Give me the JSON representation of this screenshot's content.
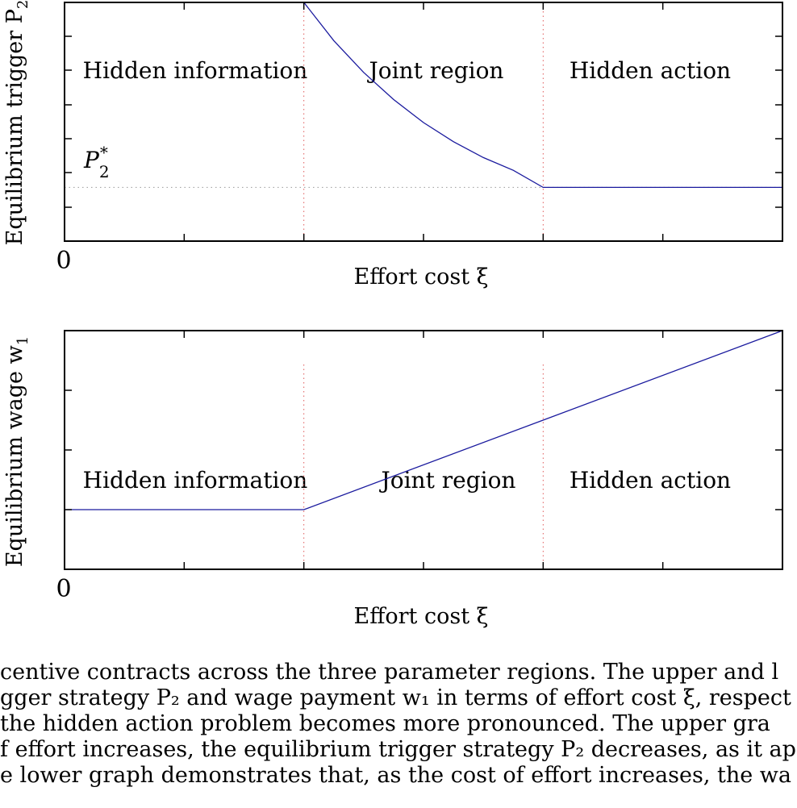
{
  "chart_data": [
    {
      "type": "line",
      "ylabel": "Equilibrium trigger P",
      "ylabel_sub": "2",
      "xlabel": "Effort cost ξ",
      "origin_label": "0",
      "regions": [
        "Hidden information",
        "Joint region",
        "Hidden action"
      ],
      "annotation": "P",
      "annotation_sub": "2",
      "annotation_sup": "*",
      "xlim": [
        0,
        6
      ],
      "ylim": [
        0,
        6
      ],
      "region_boundaries": [
        2,
        4
      ],
      "reference_y": 1.35,
      "series": [
        {
          "x": [
            0,
            2,
            2.25,
            2.5,
            2.75,
            3,
            3.25,
            3.5,
            3.75,
            4,
            6
          ],
          "y": [
            6,
            6,
            5.04,
            4.24,
            3.56,
            2.98,
            2.5,
            2.1,
            1.78,
            1.35,
            1.35
          ]
        }
      ]
    },
    {
      "type": "line",
      "ylabel": "Equilibrium wage w",
      "ylabel_sub": "1",
      "xlabel": "Effort cost ξ",
      "origin_label": "0",
      "regions": [
        "Hidden information",
        "Joint region",
        "Hidden action"
      ],
      "xlim": [
        0,
        6
      ],
      "ylim": [
        0,
        4
      ],
      "region_boundaries": [
        2,
        4
      ],
      "series": [
        {
          "x": [
            0,
            2,
            4,
            6
          ],
          "y": [
            1,
            1,
            2.5,
            4
          ]
        }
      ]
    }
  ],
  "caption": {
    "lines": [
      "centive contracts across the three parameter regions. The upper and l",
      "gger strategy P₂ and wage payment w₁ in terms of effort cost ξ, respect",
      " the hidden action problem becomes more pronounced. The upper gra",
      "f effort increases, the equilibrium trigger strategy P₂ decreases, as it ap",
      "e lower graph demonstrates that, as the cost of effort increases, the wa"
    ]
  },
  "colors": {
    "series": "#1a1a9e",
    "boundary": "#e05a5a",
    "reference": "#999999",
    "axes": "#000000"
  }
}
